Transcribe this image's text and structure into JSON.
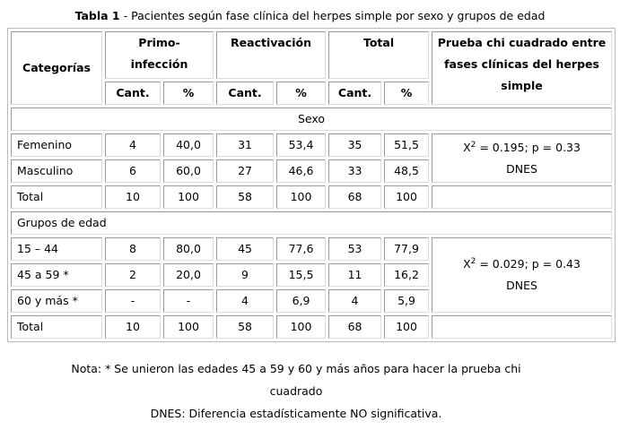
{
  "caption": {
    "label": "Tabla 1",
    "text": " - Pacientes según fase clínica del herpes simple por sexo y grupos de edad"
  },
  "header": {
    "categorias": "Categorías",
    "primo": "Primo-infección",
    "primo_l1": "Primo-",
    "primo_l2": "infección",
    "reactivacion": "Reactivación",
    "total": "Total",
    "prueba": "Prueba chi cuadrado entre fases clínicas del herpes simple",
    "cant": "Cant.",
    "pct": "%"
  },
  "sections": {
    "sexo": "Sexo",
    "edad": "Grupos de edad"
  },
  "rows": [
    {
      "cat": "Femenino",
      "v": [
        "4",
        "40,0",
        "31",
        "53,4",
        "35",
        "51,5"
      ]
    },
    {
      "cat": "Masculino",
      "v": [
        "6",
        "60,0",
        "27",
        "46,6",
        "33",
        "48,5"
      ]
    },
    {
      "cat": "Total",
      "v": [
        "10",
        "100",
        "58",
        "100",
        "68",
        "100"
      ]
    },
    {
      "cat": "15 – 44",
      "v": [
        "8",
        "80,0",
        "45",
        "77,6",
        "53",
        "77,9"
      ]
    },
    {
      "cat": "45 a 59 *",
      "v": [
        "2",
        "20,0",
        "9",
        "15,5",
        "11",
        "16,2"
      ]
    },
    {
      "cat": "60 y más *",
      "v": [
        "-",
        "-",
        "4",
        "6,9",
        "4",
        "5,9"
      ]
    },
    {
      "cat": "Total",
      "v": [
        "10",
        "100",
        "58",
        "100",
        "68",
        "100"
      ]
    }
  ],
  "tests": {
    "sexo": {
      "x": "X",
      "exp": "2",
      "stat": " = 0.195; p = 0.33",
      "sig": "DNES"
    },
    "edad": {
      "x": "X",
      "exp": "2",
      "stat": " = 0.029; p = 0.43",
      "sig": "DNES"
    }
  },
  "notes": {
    "line1": "Nota: * Se unieron las edades 45 a 59 y 60 y más años para hacer la prueba chi",
    "line2": "cuadrado",
    "line3": "DNES: Diferencia estadísticamente NO significativa."
  }
}
